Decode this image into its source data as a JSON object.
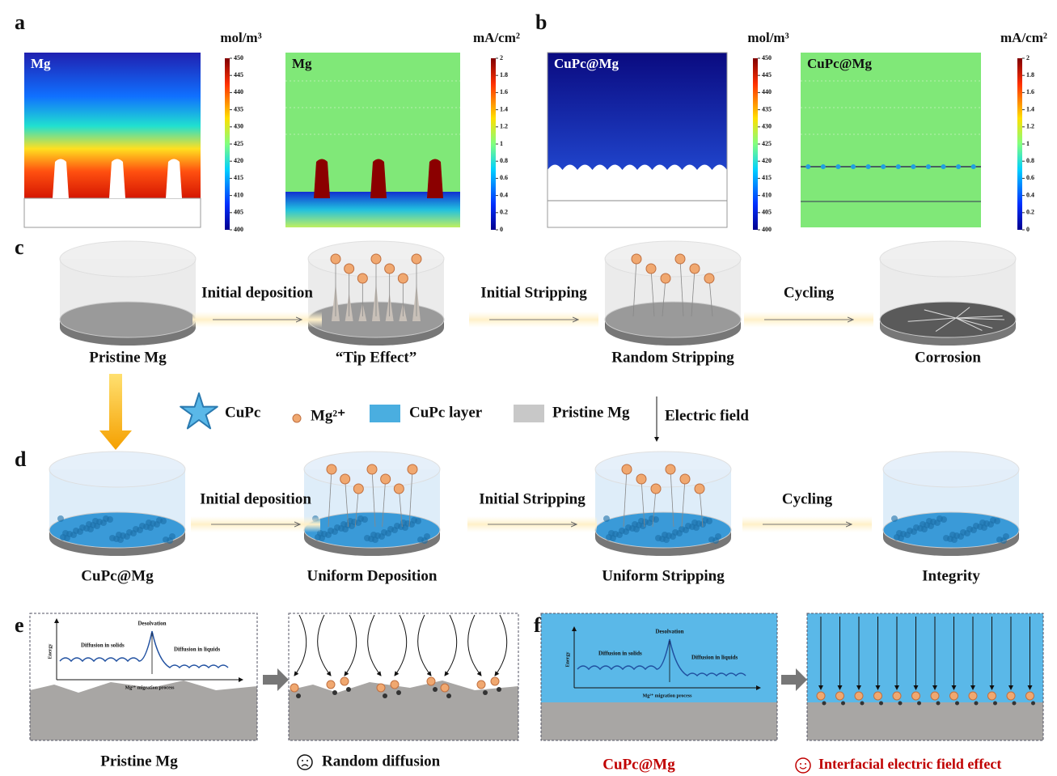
{
  "panel_labels": [
    "a",
    "b",
    "c",
    "d",
    "e",
    "f"
  ],
  "panel_a": {
    "maps": [
      {
        "label": "Mg",
        "unit": "mol/m³",
        "ticks": [
          450,
          445,
          440,
          435,
          430,
          425,
          420,
          415,
          410,
          405,
          400
        ]
      },
      {
        "label": "Mg",
        "unit": "mA/cm²",
        "ticks": [
          2,
          1.8,
          1.6,
          1.4,
          1.2,
          1,
          0.8,
          0.6,
          0.4,
          0.2,
          0
        ]
      }
    ]
  },
  "panel_b": {
    "maps": [
      {
        "label": "CuPc@Mg",
        "unit": "mol/m³",
        "ticks": [
          450,
          445,
          440,
          435,
          430,
          425,
          420,
          415,
          410,
          405,
          400
        ]
      },
      {
        "label": "CuPc@Mg",
        "unit": "mA/cm²",
        "ticks": [
          2,
          1.8,
          1.6,
          1.4,
          1.2,
          1,
          0.8,
          0.6,
          0.4,
          0.2,
          0
        ]
      }
    ]
  },
  "row_c": {
    "arrows": [
      "Initial deposition",
      "Initial Stripping",
      "Cycling"
    ],
    "steps": [
      "Pristine Mg",
      "“Tip Effect”",
      "Random Stripping",
      "Corrosion"
    ]
  },
  "legend": [
    "CuPc",
    "Mg²⁺",
    "CuPc layer",
    "Pristine Mg",
    "Electric field"
  ],
  "row_d": {
    "arrows": [
      "Initial deposition",
      "Initial Stripping",
      "Cycling"
    ],
    "steps": [
      "CuPc@Mg",
      "Uniform Deposition",
      "Uniform Stripping",
      "Integrity"
    ]
  },
  "panel_e": {
    "inset": {
      "peak": "Desolvation",
      "left": "Diffusion in solids",
      "right": "Diffusion in liquids",
      "y_axis": "Energy",
      "x_axis": "Mg²⁺ migration process"
    },
    "captions": [
      "Pristine Mg",
      "Random diffusion"
    ]
  },
  "panel_f": {
    "inset": {
      "peak": "Desolvation",
      "left": "Diffusion in solids",
      "right": "Diffusion in liquids",
      "y_axis": "Energy",
      "x_axis": "Mg²⁺ migration process"
    },
    "captions": [
      "CuPc@Mg",
      "Interfacial electric field effect"
    ]
  }
}
